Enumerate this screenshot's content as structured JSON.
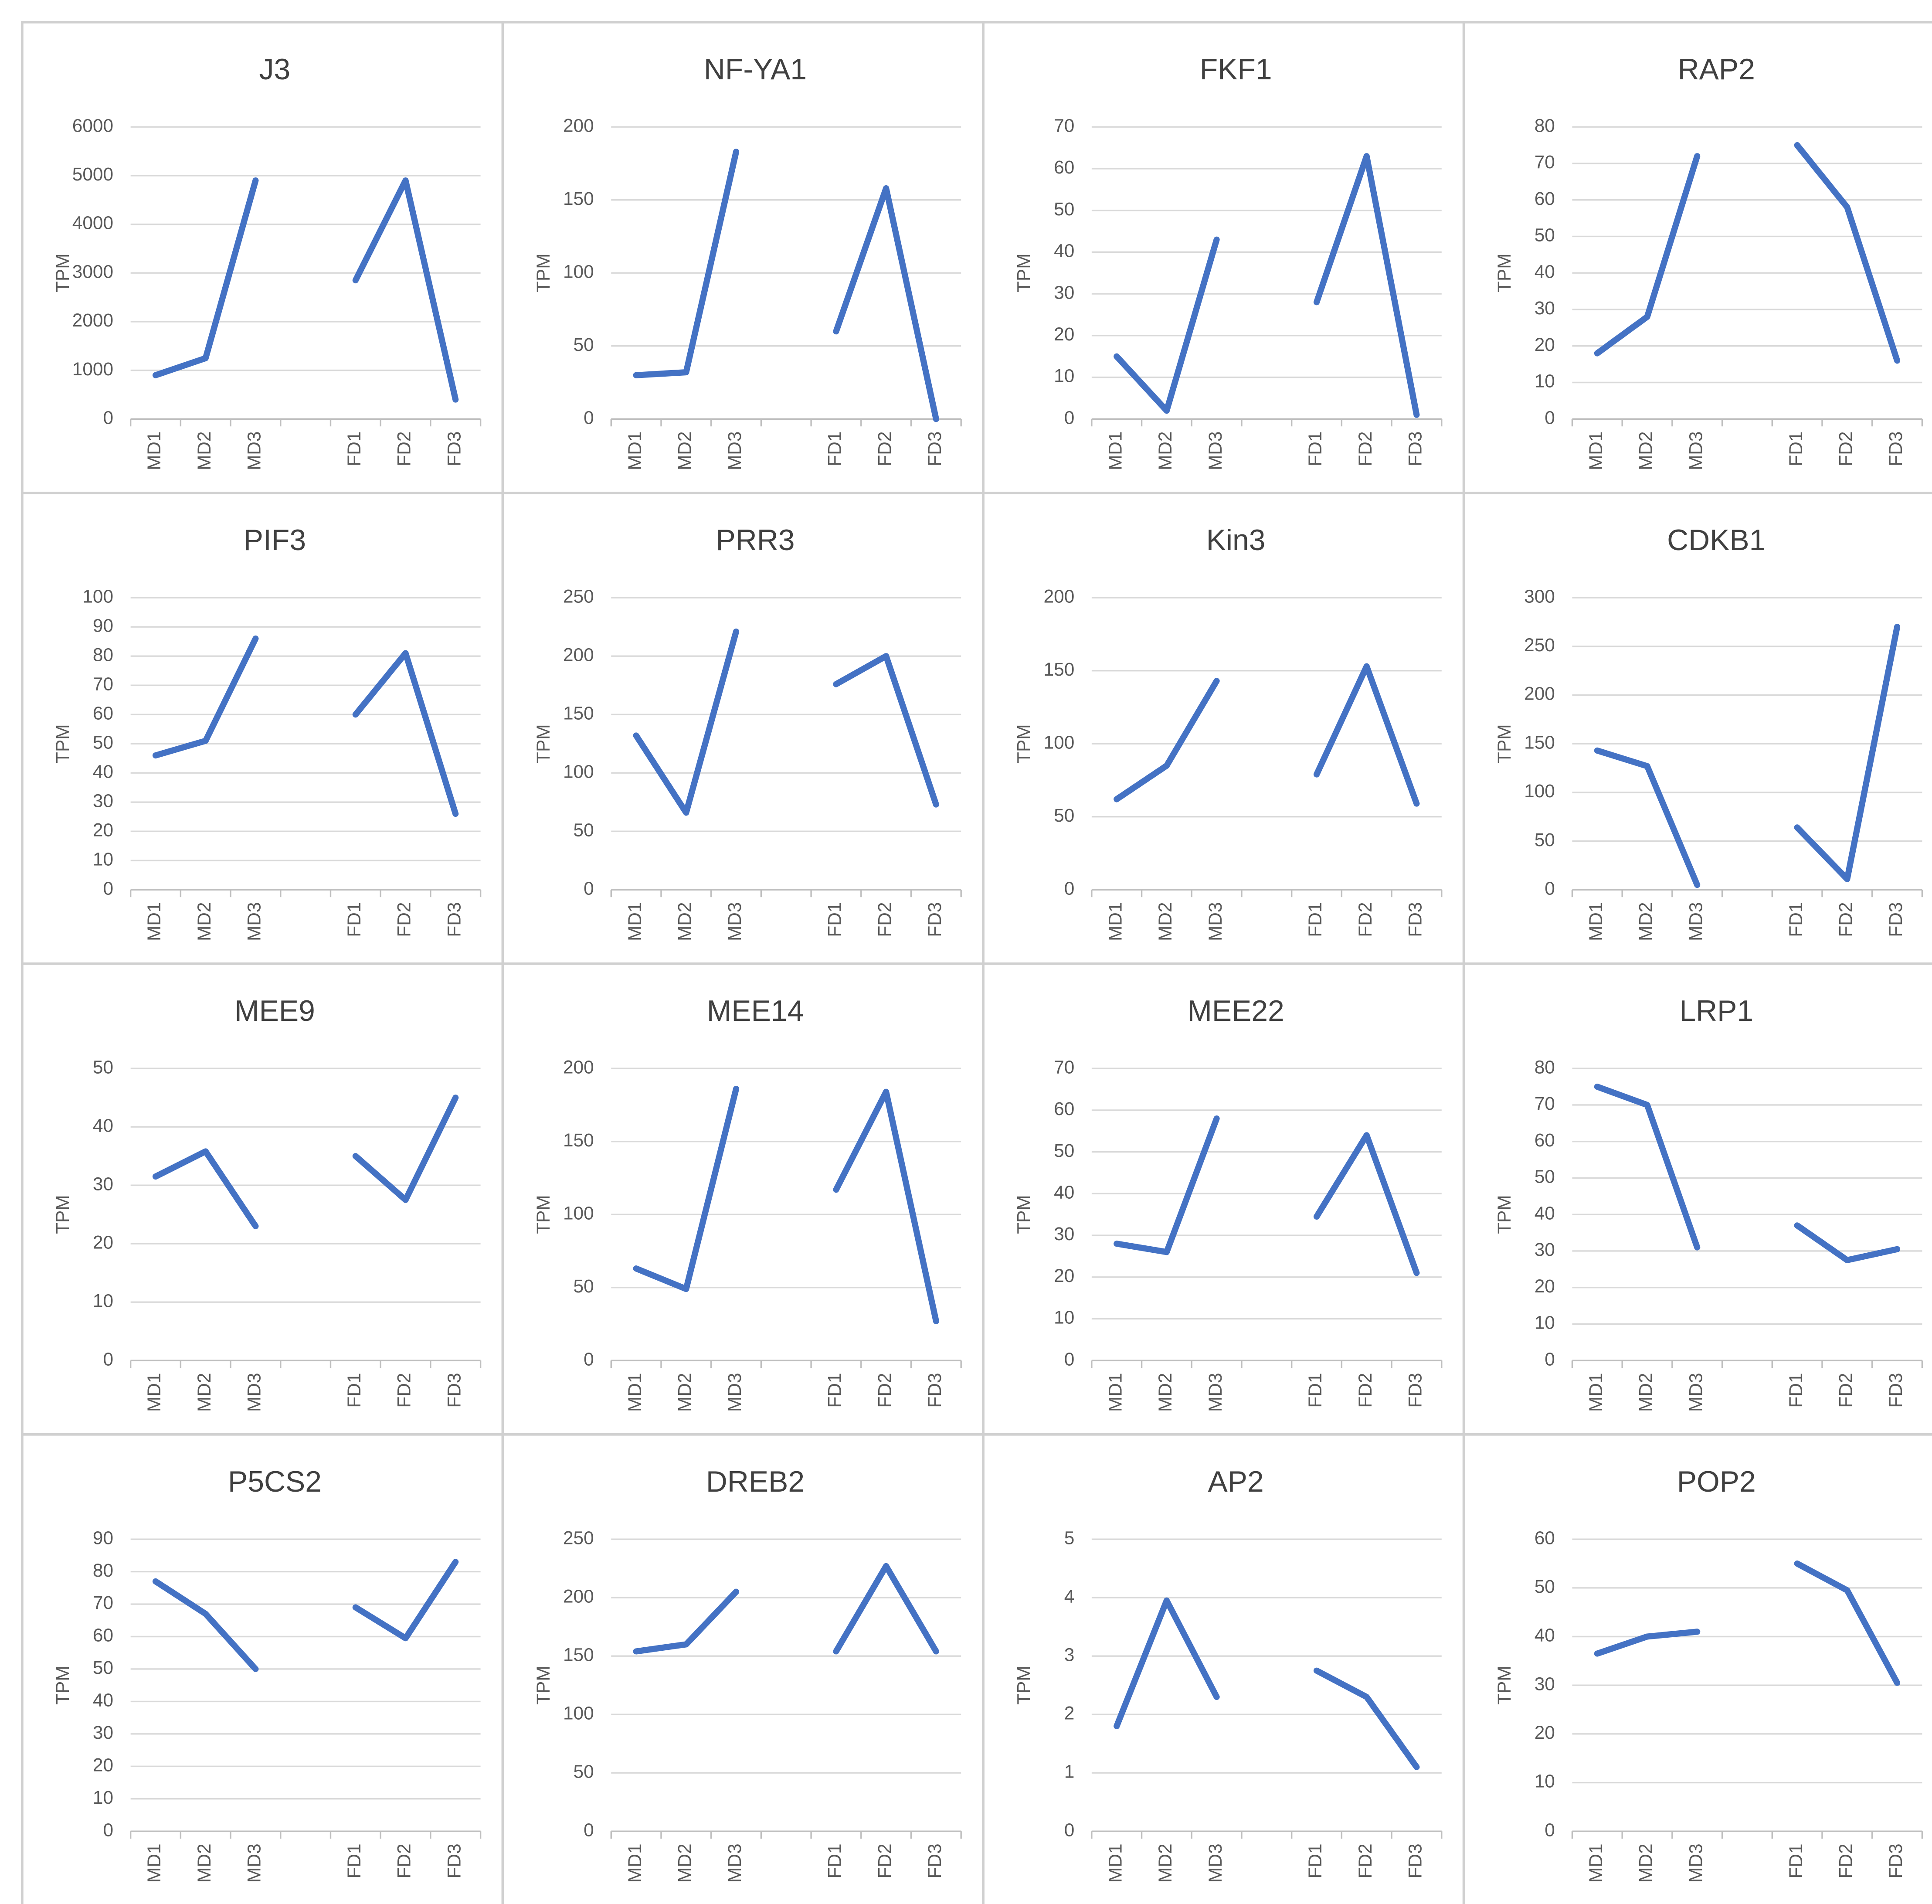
{
  "chart_data": [
    {
      "type": "line",
      "title": "J3",
      "y_label": "TPM",
      "categories": [
        "MD1",
        "MD2",
        "MD3",
        null,
        "FD1",
        "FD2",
        "FD3"
      ],
      "values": [
        900,
        1250,
        4900,
        null,
        2850,
        4900,
        400
      ],
      "color": "#4472c4",
      "ylim": [
        0,
        6000
      ],
      "yticks": [
        0,
        1000,
        2000,
        3000,
        4000,
        5000,
        6000
      ],
      "grid": true
    },
    {
      "type": "line",
      "title": "NF-YA1",
      "y_label": "TPM",
      "categories": [
        "MD1",
        "MD2",
        "MD3",
        null,
        "FD1",
        "FD2",
        "FD3"
      ],
      "values": [
        30,
        32,
        183,
        null,
        60,
        158,
        0
      ],
      "color": "#4472c4",
      "ylim": [
        0,
        200
      ],
      "yticks": [
        0,
        50,
        100,
        150,
        200
      ],
      "grid": true
    },
    {
      "type": "line",
      "title": "FKF1",
      "y_label": "TPM",
      "categories": [
        "MD1",
        "MD2",
        "MD3",
        null,
        "FD1",
        "FD2",
        "FD3"
      ],
      "values": [
        15,
        2,
        43,
        null,
        28,
        63,
        1
      ],
      "color": "#4472c4",
      "ylim": [
        0,
        70
      ],
      "yticks": [
        0,
        10,
        20,
        30,
        40,
        50,
        60,
        70
      ],
      "grid": true
    },
    {
      "type": "line",
      "title": "RAP2",
      "y_label": "TPM",
      "categories": [
        "MD1",
        "MD2",
        "MD3",
        null,
        "FD1",
        "FD2",
        "FD3"
      ],
      "values": [
        18,
        28,
        72,
        null,
        75,
        58,
        16
      ],
      "color": "#4472c4",
      "ylim": [
        0,
        80
      ],
      "yticks": [
        0,
        10,
        20,
        30,
        40,
        50,
        60,
        70,
        80
      ],
      "grid": true
    },
    {
      "type": "line",
      "title": "PIF3",
      "y_label": "TPM",
      "categories": [
        "MD1",
        "MD2",
        "MD3",
        null,
        "FD1",
        "FD2",
        "FD3"
      ],
      "values": [
        46,
        51,
        86,
        null,
        60,
        81,
        26
      ],
      "color": "#4472c4",
      "ylim": [
        0,
        100
      ],
      "yticks": [
        0,
        10,
        20,
        30,
        40,
        50,
        60,
        70,
        80,
        90,
        100
      ],
      "grid": true
    },
    {
      "type": "line",
      "title": "PRR3",
      "y_label": "TPM",
      "categories": [
        "MD1",
        "MD2",
        "MD3",
        null,
        "FD1",
        "FD2",
        "FD3"
      ],
      "values": [
        132,
        66,
        221,
        null,
        176,
        200,
        73
      ],
      "color": "#4472c4",
      "ylim": [
        0,
        250
      ],
      "yticks": [
        0,
        50,
        100,
        150,
        200,
        250
      ],
      "grid": true
    },
    {
      "type": "line",
      "title": "Kin3",
      "y_label": "TPM",
      "categories": [
        "MD1",
        "MD2",
        "MD3",
        null,
        "FD1",
        "FD2",
        "FD3"
      ],
      "values": [
        62,
        85,
        143,
        null,
        79,
        153,
        59
      ],
      "color": "#4472c4",
      "ylim": [
        0,
        200
      ],
      "yticks": [
        0,
        50,
        100,
        150,
        200
      ],
      "grid": true
    },
    {
      "type": "line",
      "title": "CDKB1",
      "y_label": "TPM",
      "categories": [
        "MD1",
        "MD2",
        "MD3",
        null,
        "FD1",
        "FD2",
        "FD3"
      ],
      "values": [
        143,
        127,
        5,
        null,
        64,
        11,
        270
      ],
      "color": "#4472c4",
      "ylim": [
        0,
        300
      ],
      "yticks": [
        0,
        50,
        100,
        150,
        200,
        250,
        300
      ],
      "grid": true
    },
    {
      "type": "line",
      "title": "MEE9",
      "y_label": "TPM",
      "categories": [
        "MD1",
        "MD2",
        "MD3",
        null,
        "FD1",
        "FD2",
        "FD3"
      ],
      "values": [
        31.5,
        35.8,
        23,
        null,
        35,
        27.5,
        45
      ],
      "color": "#4472c4",
      "ylim": [
        0,
        50
      ],
      "yticks": [
        0,
        10,
        20,
        30,
        40,
        50
      ],
      "grid": true
    },
    {
      "type": "line",
      "title": "MEE14",
      "y_label": "TPM",
      "categories": [
        "MD1",
        "MD2",
        "MD3",
        null,
        "FD1",
        "FD2",
        "FD3"
      ],
      "values": [
        63,
        49,
        186,
        null,
        117,
        184,
        27
      ],
      "color": "#4472c4",
      "ylim": [
        0,
        200
      ],
      "yticks": [
        0,
        50,
        100,
        150,
        200
      ],
      "grid": true
    },
    {
      "type": "line",
      "title": "MEE22",
      "y_label": "TPM",
      "categories": [
        "MD1",
        "MD2",
        "MD3",
        null,
        "FD1",
        "FD2",
        "FD3"
      ],
      "values": [
        28,
        26,
        58,
        null,
        34.5,
        54,
        21
      ],
      "color": "#4472c4",
      "ylim": [
        0,
        70
      ],
      "yticks": [
        0,
        10,
        20,
        30,
        40,
        50,
        60,
        70
      ],
      "grid": true
    },
    {
      "type": "line",
      "title": "LRP1",
      "y_label": "TPM",
      "categories": [
        "MD1",
        "MD2",
        "MD3",
        null,
        "FD1",
        "FD2",
        "FD3"
      ],
      "values": [
        75,
        70,
        31,
        null,
        37,
        27.5,
        30.5
      ],
      "color": "#4472c4",
      "ylim": [
        0,
        80
      ],
      "yticks": [
        0,
        10,
        20,
        30,
        40,
        50,
        60,
        70,
        80
      ],
      "grid": true
    },
    {
      "type": "line",
      "title": "P5CS2",
      "y_label": "TPM",
      "categories": [
        "MD1",
        "MD2",
        "MD3",
        null,
        "FD1",
        "FD2",
        "FD3"
      ],
      "values": [
        77,
        67,
        50,
        null,
        69,
        59.5,
        83
      ],
      "color": "#4472c4",
      "ylim": [
        0,
        90
      ],
      "yticks": [
        0,
        10,
        20,
        30,
        40,
        50,
        60,
        70,
        80,
        90
      ],
      "grid": true
    },
    {
      "type": "line",
      "title": "DREB2",
      "y_label": "TPM",
      "categories": [
        "MD1",
        "MD2",
        "MD3",
        null,
        "FD1",
        "FD2",
        "FD3"
      ],
      "values": [
        154,
        160,
        205,
        null,
        154,
        227,
        154
      ],
      "color": "#4472c4",
      "ylim": [
        0,
        250
      ],
      "yticks": [
        0,
        50,
        100,
        150,
        200,
        250
      ],
      "grid": true
    },
    {
      "type": "line",
      "title": "AP2",
      "y_label": "TPM",
      "categories": [
        "MD1",
        "MD2",
        "MD3",
        null,
        "FD1",
        "FD2",
        "FD3"
      ],
      "values": [
        1.8,
        3.95,
        2.3,
        null,
        2.75,
        2.3,
        1.1
      ],
      "color": "#4472c4",
      "ylim": [
        0,
        5
      ],
      "yticks": [
        0,
        1,
        2,
        3,
        4,
        5
      ],
      "grid": true
    },
    {
      "type": "line",
      "title": "POP2",
      "y_label": "TPM",
      "categories": [
        "MD1",
        "MD2",
        "MD3",
        null,
        "FD1",
        "FD2",
        "FD3"
      ],
      "values": [
        36.5,
        40,
        41,
        null,
        55,
        49.5,
        30.5
      ],
      "color": "#4472c4",
      "ylim": [
        0,
        60
      ],
      "yticks": [
        0,
        10,
        20,
        30,
        40,
        50,
        60
      ],
      "grid": true
    }
  ]
}
